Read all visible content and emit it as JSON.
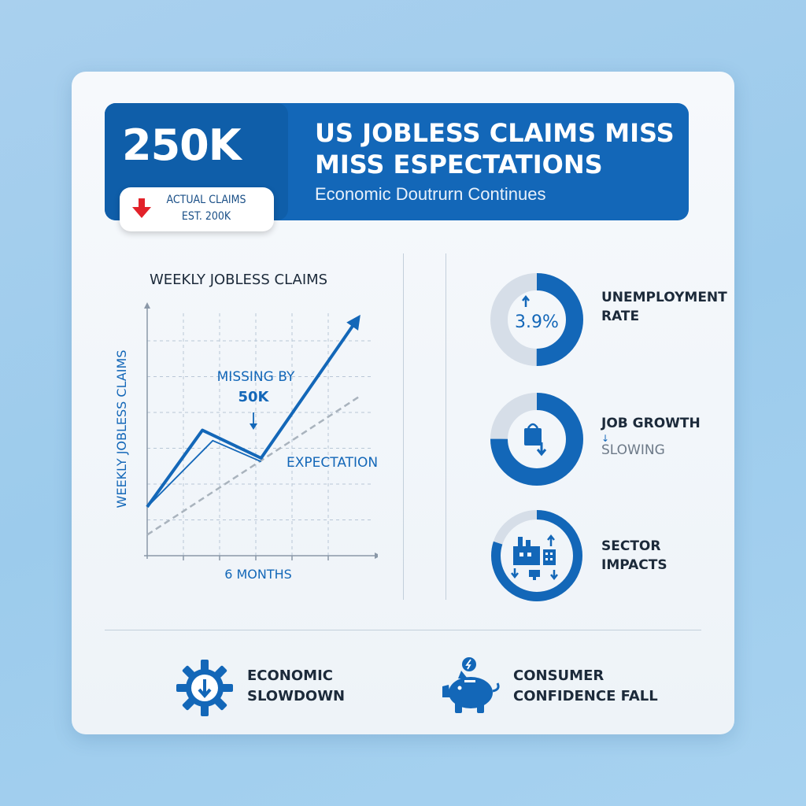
{
  "header": {
    "kpi_value": "250K",
    "pill_line1": "ACTUAL CLAIMS",
    "pill_line2": "EST. 200K",
    "title_line1": "US JOBLESS CLAIMS MISS",
    "title_line2": "MISS ESPECTATIONS",
    "subtitle": "Economic Doutrurn Continues"
  },
  "colors": {
    "primary": "#1367b8",
    "dark_blue": "#0f5ea9",
    "light_track": "#d6dee8",
    "down_red": "#e2222a",
    "expectation_gray": "#a9b3bd"
  },
  "chart_data": {
    "type": "line",
    "title": "WEEKLY JOBLESS CLAIMS",
    "ylabel": "WEEKLY JOBLESS CLAIMS",
    "xlabel": "6 MONTHS",
    "annotations": [
      {
        "text": "MISSING BY",
        "text2": "50K"
      },
      {
        "text": "EXPECTATION"
      }
    ],
    "series": [
      {
        "name": "",
        "x": [
          0,
          1.6,
          3.3,
          6.1
        ],
        "y": [
          1.4,
          3.6,
          2.8,
          6.8
        ]
      },
      {
        "name": "",
        "x": [
          0,
          1.9,
          3.3
        ],
        "y": [
          1.4,
          3.3,
          2.7
        ]
      },
      {
        "name": "EXPECTATION",
        "x": [
          0,
          6.2
        ],
        "y": [
          0.6,
          4.6
        ]
      }
    ],
    "xlim": [
      0,
      6.5
    ],
    "ylim": [
      0,
      7
    ],
    "grid": true
  },
  "metrics": [
    {
      "label_line1": "UNEMPLOYMENT",
      "label_line2": "RATE",
      "value": "3.9%",
      "fill": 0.5,
      "icon": "up-arrow-icon"
    },
    {
      "label_line1": "JOB GROWTH",
      "sub": "SLOWING",
      "fill": 0.75,
      "icon": "shopping-bag-icon"
    },
    {
      "label_line1": "SECTOR",
      "label_line2": "IMPACTS",
      "fill": 0.8,
      "icon": "factory-icon"
    }
  ],
  "bottom": [
    {
      "line1": "ECONOMIC",
      "line2": "SLOWDOWN",
      "icon": "gear-down-icon"
    },
    {
      "line1": "CONSUMER",
      "line2": "CONFIDENCE FALL",
      "icon": "piggy-bank-icon"
    }
  ]
}
